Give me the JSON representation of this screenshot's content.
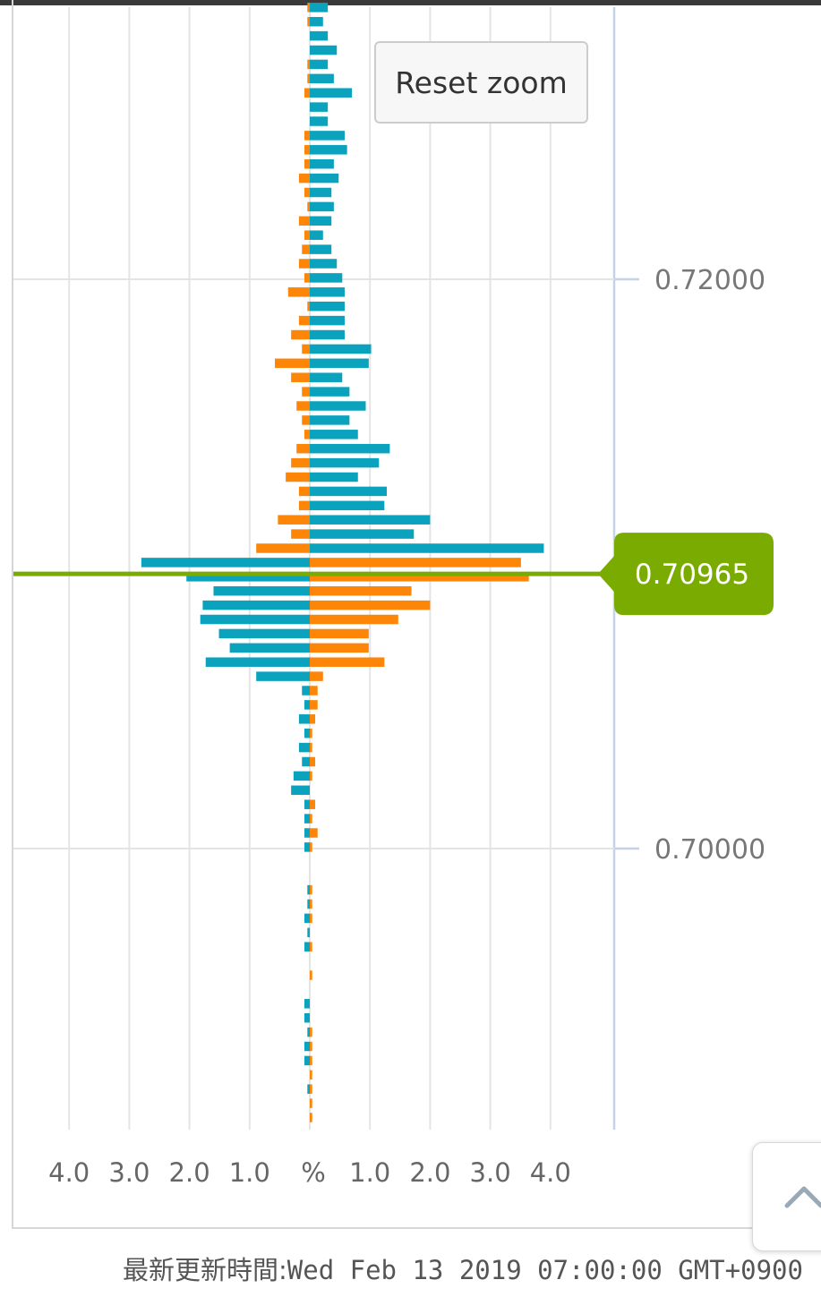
{
  "reset_zoom_label": "Reset zoom",
  "footer": {
    "label": "最新更新時間:",
    "timestamp": "Wed Feb 13 2019 07:00:00 GMT+0900"
  },
  "icons": {
    "scroll_top": "chevron-up-icon"
  },
  "colors": {
    "teal": "#0aa2bd",
    "orange": "#fd8508",
    "current_line": "#7aab00",
    "grid": "#e4e4e4",
    "axis": "#c6d3e6"
  },
  "chart_data": {
    "type": "bar",
    "orientation": "horizontal",
    "description_of_axes": "x: percent (left and right of center), y: price",
    "x_ticks_left": [
      "4.0",
      "3.0",
      "2.0",
      "1.0"
    ],
    "x_center_label": "%",
    "x_ticks_right": [
      "1.0",
      "2.0",
      "3.0",
      "4.0"
    ],
    "xlim": [
      -5,
      5
    ],
    "y_ticks": [
      "0.72000",
      "0.70000"
    ],
    "current_price": "0.70965",
    "series_names": [
      "teal",
      "orange"
    ],
    "prices": [
      0.72955,
      0.72905,
      0.72855,
      0.72805,
      0.72755,
      0.72705,
      0.72655,
      0.72605,
      0.72555,
      0.72505,
      0.72455,
      0.72405,
      0.72355,
      0.72305,
      0.72255,
      0.72205,
      0.72155,
      0.72105,
      0.72055,
      0.72005,
      0.71955,
      0.71905,
      0.71855,
      0.71805,
      0.71755,
      0.71705,
      0.71655,
      0.71605,
      0.71555,
      0.71505,
      0.71455,
      0.71405,
      0.71355,
      0.71305,
      0.71255,
      0.71205,
      0.71155,
      0.71105,
      0.71055,
      0.71005,
      0.70955,
      0.70905,
      0.70855,
      0.70805,
      0.70755,
      0.70705,
      0.70655,
      0.70605,
      0.70555,
      0.70505,
      0.70455,
      0.70405,
      0.70355,
      0.70305,
      0.70255,
      0.70205,
      0.70155,
      0.70105,
      0.70055,
      0.70005,
      0.69955,
      0.69905,
      0.69855,
      0.69805,
      0.69755,
      0.69705,
      0.69655,
      0.69605,
      0.69555,
      0.69505,
      0.69455,
      0.69405,
      0.69355,
      0.69305,
      0.69255,
      0.69205,
      0.69155,
      0.69105,
      0.69055
    ],
    "teal_right": [
      0.3,
      0.22,
      0.3,
      0.45,
      0.3,
      0.4,
      0.7,
      0.3,
      0.3,
      0.58,
      0.62,
      0.4,
      0.48,
      0.36,
      0.4,
      0.36,
      0.22,
      0.36,
      0.45,
      0.54,
      0.58,
      0.58,
      0.58,
      0.58,
      1.02,
      0.98,
      0.54,
      0.66,
      0.93,
      0.66,
      0.8,
      1.33,
      1.15,
      0.8,
      1.28,
      1.24,
      2.0,
      1.73,
      3.89,
      0,
      0,
      0,
      0,
      0,
      0,
      0,
      0,
      0,
      0,
      0,
      0,
      0,
      0,
      0,
      0,
      0,
      0,
      0,
      0,
      0,
      0,
      0,
      0,
      0,
      0,
      0,
      0,
      0,
      0,
      0,
      0,
      0,
      0,
      0,
      0,
      0,
      0,
      0,
      0
    ],
    "orange_left": [
      0.04,
      0.04,
      0,
      0,
      0.04,
      0.04,
      0.09,
      0,
      0,
      0.09,
      0.09,
      0.09,
      0.18,
      0.09,
      0.04,
      0.18,
      0.09,
      0.13,
      0.18,
      0.09,
      0.36,
      0.04,
      0.18,
      0.31,
      0.13,
      0.58,
      0.31,
      0.13,
      0.22,
      0.13,
      0.09,
      0.22,
      0.31,
      0.4,
      0.18,
      0.18,
      0.53,
      0.31,
      0.89,
      0,
      0,
      0,
      0,
      0,
      0,
      0,
      0,
      0,
      0,
      0,
      0,
      0,
      0,
      0,
      0,
      0,
      0,
      0,
      0,
      0,
      0,
      0,
      0,
      0,
      0,
      0,
      0,
      0,
      0,
      0,
      0,
      0,
      0,
      0,
      0,
      0,
      0,
      0,
      0
    ],
    "teal_left": [
      0,
      0,
      0,
      0,
      0,
      0,
      0,
      0,
      0,
      0,
      0,
      0,
      0,
      0,
      0,
      0,
      0,
      0,
      0,
      0,
      0,
      0,
      0,
      0,
      0,
      0,
      0,
      0,
      0,
      0,
      0,
      0,
      0,
      0,
      0,
      0,
      0,
      0,
      0,
      2.8,
      2.05,
      1.6,
      1.78,
      1.82,
      1.51,
      1.33,
      1.73,
      0.89,
      0.13,
      0.09,
      0.18,
      0.09,
      0.18,
      0.13,
      0.27,
      0.31,
      0.09,
      0.09,
      0.09,
      0.09,
      0,
      0,
      0.04,
      0.04,
      0.09,
      0.04,
      0.09,
      0,
      0,
      0,
      0.09,
      0.09,
      0.04,
      0.09,
      0.09,
      0,
      0.04,
      0,
      0
    ],
    "orange_right": [
      0,
      0,
      0,
      0,
      0,
      0,
      0,
      0,
      0,
      0,
      0,
      0,
      0,
      0,
      0,
      0,
      0,
      0,
      0,
      0,
      0,
      0,
      0,
      0,
      0,
      0,
      0,
      0,
      0,
      0,
      0,
      0,
      0,
      0,
      0,
      0,
      0,
      0,
      0,
      3.51,
      3.64,
      1.69,
      2.0,
      1.47,
      0.98,
      0.98,
      1.24,
      0.22,
      0.13,
      0.13,
      0.09,
      0.04,
      0.04,
      0.09,
      0.04,
      0,
      0.09,
      0.04,
      0.13,
      0.04,
      0,
      0,
      0.04,
      0.04,
      0.04,
      0,
      0.04,
      0,
      0.04,
      0,
      0,
      0,
      0.04,
      0.04,
      0.04,
      0.04,
      0.04,
      0.04,
      0.04
    ]
  }
}
